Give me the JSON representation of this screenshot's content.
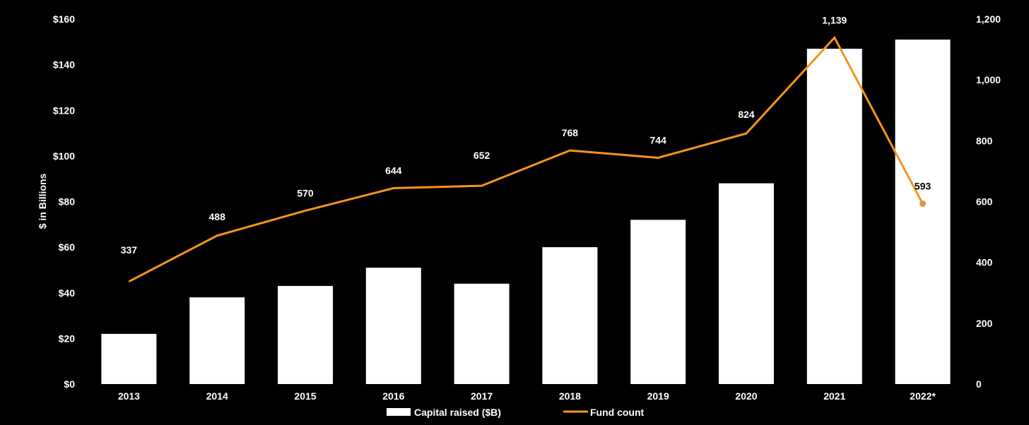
{
  "chart_data": {
    "type": "bar+line",
    "title": "",
    "categories": [
      "2013",
      "2014",
      "2015",
      "2016",
      "2017",
      "2018",
      "2019",
      "2020",
      "2021",
      "2022*"
    ],
    "series": [
      {
        "name": "Capital raised ($B)",
        "type": "bar",
        "axis": "left",
        "color": "#ffffff",
        "values": [
          22,
          38,
          43,
          51,
          44,
          60,
          72,
          88,
          147,
          151
        ]
      },
      {
        "name": "Fund count",
        "type": "line",
        "axis": "right",
        "color": "#f7941d",
        "values": [
          337,
          488,
          570,
          644,
          652,
          768,
          744,
          824,
          1139,
          593
        ],
        "labels": [
          "337",
          "488",
          "570",
          "644",
          "652",
          "768",
          "744",
          "824",
          "1,139",
          "593"
        ]
      }
    ],
    "ylabel": "$ in Billions",
    "y_left": {
      "lim": [
        0,
        160
      ],
      "ticks": [
        "$0",
        "$20",
        "$40",
        "$60",
        "$80",
        "$100",
        "$120",
        "$140",
        "$160"
      ]
    },
    "y_right": {
      "lim": [
        0,
        1200
      ],
      "ticks": [
        "0",
        "200",
        "400",
        "600",
        "800",
        "1,000",
        "1,200"
      ]
    },
    "grid": false,
    "legend": "bottom",
    "background": "#000000",
    "marker_color": "#c8a060"
  }
}
